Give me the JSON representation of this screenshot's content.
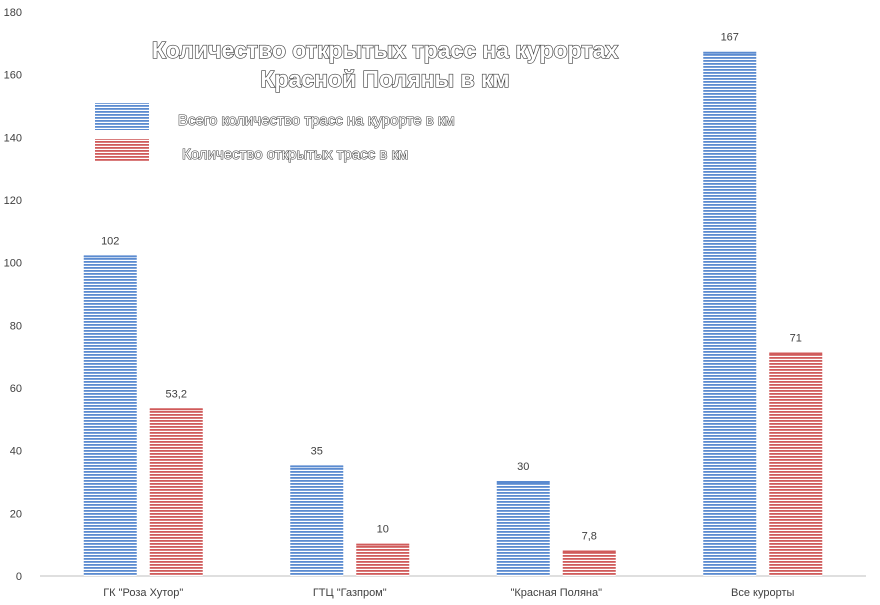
{
  "chart_data": {
    "type": "bar",
    "title_lines": [
      "Количество открытых трасс на курортах",
      "Красной Поляны в км"
    ],
    "categories": [
      "ГК \"Роза Хутор\"",
      "ГТЦ \"Газпром\"",
      "\"Красная Поляна\"",
      "Все курорты"
    ],
    "series": [
      {
        "name": "Всего количество трасс на курорте в км",
        "values": [
          102,
          35,
          30,
          167
        ],
        "value_labels": [
          "102",
          "35",
          "30",
          "167"
        ],
        "color": "#5b8bd0"
      },
      {
        "name": "Количество открытых трасс в км",
        "values": [
          53.2,
          10,
          7.8,
          71
        ],
        "value_labels": [
          "53,2",
          "10",
          "7,8",
          "71"
        ],
        "color": "#d05b5b"
      }
    ],
    "y_ticks": [
      "0",
      "20",
      "40",
      "60",
      "80",
      "100",
      "120",
      "140",
      "160",
      "180"
    ],
    "ylim": [
      0,
      180
    ],
    "grid": false,
    "legend_position": "top-left"
  }
}
